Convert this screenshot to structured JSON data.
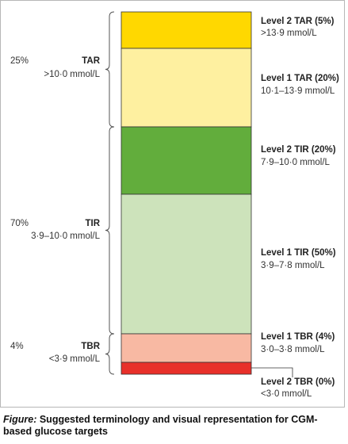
{
  "chart_data": {
    "type": "stacked-bar",
    "segments": [
      {
        "name": "Level 2 TAR",
        "percent": 5,
        "label": "Level 2 TAR (5%)",
        "range": ">13·9 mmol/L",
        "color": "#ffd800"
      },
      {
        "name": "Level 1 TAR",
        "percent": 20,
        "label": "Level 1 TAR (20%)",
        "range": "10·1–13·9 mmol/L",
        "color": "#fef0a0"
      },
      {
        "name": "Level 2 TIR",
        "percent": 20,
        "label": "Level 2 TIR (20%)",
        "range": "7·9–10·0 mmol/L",
        "color": "#62ad3c"
      },
      {
        "name": "Level 1 TIR",
        "percent": 50,
        "label": "Level 1 TIR (50%)",
        "range": "3·9–7·8 mmol/L",
        "color": "#cde3bb"
      },
      {
        "name": "Level 1 TBR",
        "percent": 4,
        "label": "Level 1 TBR (4%)",
        "range": "3·0–3·8 mmol/L",
        "color": "#f8b9a3"
      },
      {
        "name": "Level 2 TBR",
        "percent": 0,
        "label": "Level 2 TBR (0%)",
        "range": "<3·0 mmol/L",
        "color": "#e8302a"
      }
    ],
    "groups": [
      {
        "name": "TAR",
        "percent_label": "25%",
        "range": ">10·0 mmol/L"
      },
      {
        "name": "TIR",
        "percent_label": "70%",
        "range": "3·9–10·0 mmol/L"
      },
      {
        "name": "TBR",
        "percent_label": "4%",
        "range": "<3·9 mmol/L"
      }
    ]
  },
  "caption": {
    "label": "Figure:",
    "text": "Suggested terminology and visual representation for CGM-based glucose targets"
  }
}
